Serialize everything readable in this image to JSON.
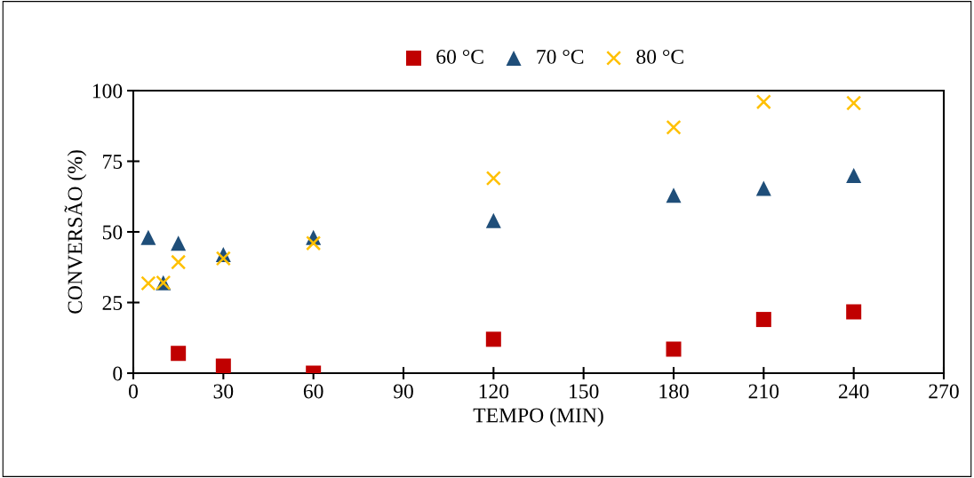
{
  "chart_data": {
    "type": "scatter",
    "xlabel": "TEMPO (MIN)",
    "ylabel": "CONVERSÃO (%)",
    "xlim": [
      0,
      270
    ],
    "xticks": [
      0,
      30,
      60,
      90,
      120,
      150,
      180,
      210,
      240,
      270
    ],
    "ylim": [
      0,
      100
    ],
    "yticks": [
      0,
      25,
      50,
      75,
      100
    ],
    "grid": false,
    "legend": "top",
    "series": [
      {
        "name": "60 °C",
        "color": "#c00000",
        "marker": "square",
        "x": [
          15,
          30,
          60,
          120,
          180,
          210,
          240
        ],
        "values": [
          7,
          2.5,
          0,
          12,
          8.5,
          19,
          21.7
        ]
      },
      {
        "name": "70 °C",
        "color": "#1f4e79",
        "marker": "triangle",
        "x": [
          5,
          10,
          15,
          30,
          60,
          120,
          180,
          210,
          240
        ],
        "values": [
          48,
          32,
          46,
          42,
          48,
          54,
          63,
          65.4,
          70
        ]
      },
      {
        "name": "80 °C",
        "color": "#ffc000",
        "marker": "cross",
        "x": [
          5,
          10,
          15,
          30,
          60,
          120,
          180,
          210,
          240
        ],
        "values": [
          31.8,
          32,
          39.3,
          40.6,
          46,
          69,
          87,
          96,
          95.6
        ]
      }
    ]
  }
}
